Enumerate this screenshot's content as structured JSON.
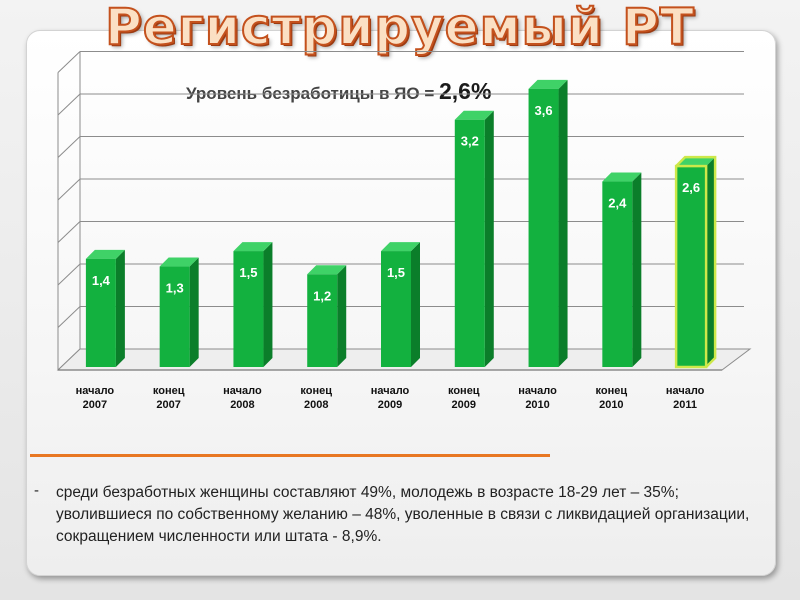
{
  "title": "Регистрируемый РТ",
  "subtitle": {
    "text": "Уровень безработицы в ЯО = ",
    "value": "2,6%"
  },
  "chart_data": {
    "type": "bar",
    "categories": [
      [
        "начало",
        "2007"
      ],
      [
        "конец",
        "2007"
      ],
      [
        "начало",
        "2008"
      ],
      [
        "конец",
        "2008"
      ],
      [
        "начало",
        "2009"
      ],
      [
        "конец",
        "2009"
      ],
      [
        "начало",
        "2010"
      ],
      [
        "конец",
        "2010"
      ],
      [
        "начало",
        "2011"
      ]
    ],
    "values": [
      1.4,
      1.3,
      1.5,
      1.2,
      1.5,
      3.2,
      3.6,
      2.4,
      2.6
    ],
    "value_labels": [
      "1,4",
      "1,3",
      "1,5",
      "1,2",
      "1,5",
      "3,2",
      "3,6",
      "2,4",
      "2,6"
    ],
    "highlighted_index": 8,
    "ylim": [
      0,
      4.4
    ],
    "grid": true,
    "colors": {
      "bar": "#13b13f",
      "highlight_border": "#cde84a"
    }
  },
  "note": {
    "bullet": "-",
    "text": "среди безработных женщины составляют 49%, молодежь в возрасте 18-29 лет – 35%; уволившиеся по собственному желанию – 48%, уволенные в связи с ликвидацией организации, сокращением численности или штата -  8,9%."
  }
}
